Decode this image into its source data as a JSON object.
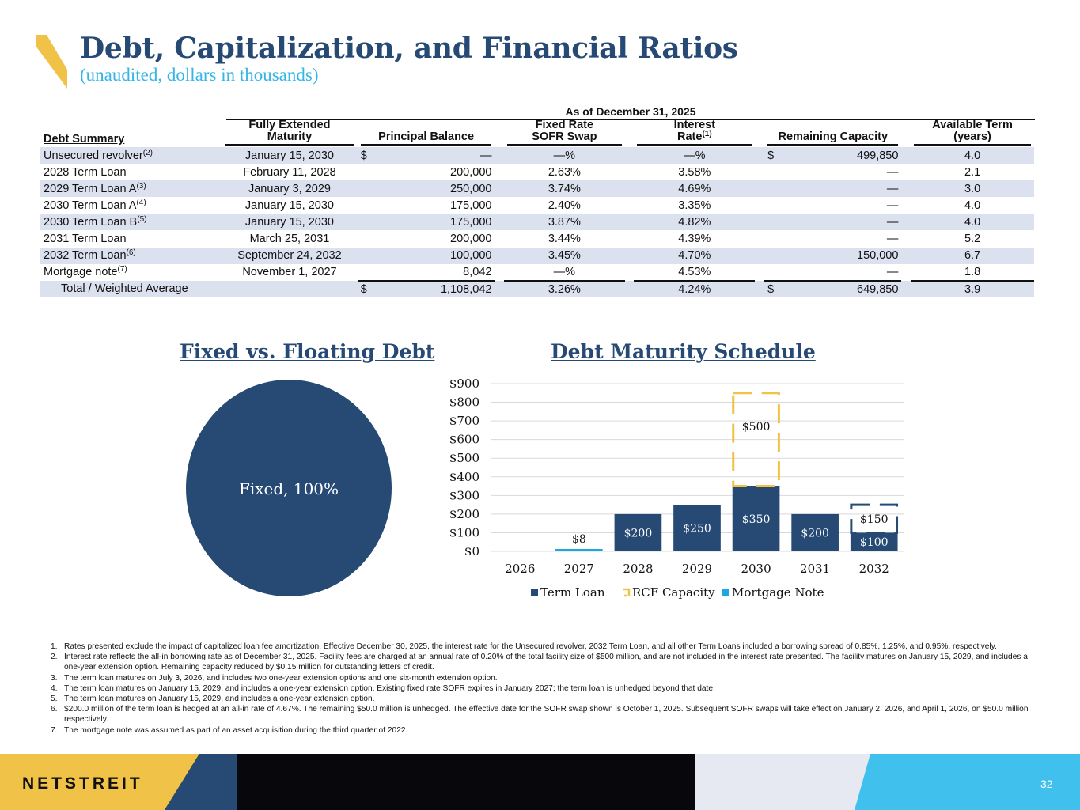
{
  "header": {
    "title": "Debt, Capitalization, and Financial Ratios",
    "subtitle": "(unaudited, dollars in thousands)",
    "colors": {
      "title": "#264a74",
      "subtitle": "#35b5e6",
      "accent": "#f0c247"
    }
  },
  "table": {
    "as_of": "As of December 31, 2025",
    "headers": {
      "debt_summary": "Debt Summary",
      "maturity_1": "Fully Extended",
      "maturity_2": "Maturity",
      "principal": "Principal Balance",
      "swap_1": "Fixed Rate",
      "swap_2": "SOFR Swap",
      "rate_1": "Interest",
      "rate_2": "Rate",
      "rate_sup": "(1)",
      "capacity": "Remaining Capacity",
      "term_1": "Available Term",
      "term_2": "(years)"
    },
    "rows": [
      {
        "name": "Unsecured revolver",
        "sup": "(2)",
        "maturity": "January 15, 2030",
        "dollar": "$",
        "principal": "—",
        "swap": "—%",
        "rate": "—%",
        "cap_dollar": "$",
        "capacity": "499,850",
        "term": "4.0"
      },
      {
        "name": "2028 Term Loan",
        "sup": "",
        "maturity": "February 11, 2028",
        "dollar": "",
        "principal": "200,000",
        "swap": "2.63%",
        "rate": "3.58%",
        "cap_dollar": "",
        "capacity": "—",
        "term": "2.1"
      },
      {
        "name": "2029 Term Loan A",
        "sup": "(3)",
        "maturity": "January 3, 2029",
        "dollar": "",
        "principal": "250,000",
        "swap": "3.74%",
        "rate": "4.69%",
        "cap_dollar": "",
        "capacity": "—",
        "term": "3.0"
      },
      {
        "name": "2030 Term Loan A",
        "sup": "(4)",
        "maturity": "January 15, 2030",
        "dollar": "",
        "principal": "175,000",
        "swap": "2.40%",
        "rate": "3.35%",
        "cap_dollar": "",
        "capacity": "—",
        "term": "4.0"
      },
      {
        "name": "2030 Term Loan B",
        "sup": "(5)",
        "maturity": "January 15, 2030",
        "dollar": "",
        "principal": "175,000",
        "swap": "3.87%",
        "rate": "4.82%",
        "cap_dollar": "",
        "capacity": "—",
        "term": "4.0"
      },
      {
        "name": "2031 Term Loan",
        "sup": "",
        "maturity": "March 25, 2031",
        "dollar": "",
        "principal": "200,000",
        "swap": "3.44%",
        "rate": "4.39%",
        "cap_dollar": "",
        "capacity": "—",
        "term": "5.2"
      },
      {
        "name": "2032 Term Loan",
        "sup": "(6)",
        "maturity": "September 24, 2032",
        "dollar": "",
        "principal": "100,000",
        "swap": "3.45%",
        "rate": "4.70%",
        "cap_dollar": "",
        "capacity": "150,000",
        "term": "6.7"
      },
      {
        "name": "Mortgage note",
        "sup": "(7)",
        "maturity": "November 1, 2027",
        "dollar": "",
        "principal": "8,042",
        "swap": "—%",
        "rate": "4.53%",
        "cap_dollar": "",
        "capacity": "—",
        "term": "1.8"
      }
    ],
    "total": {
      "name": "Total / Weighted Average",
      "dollar": "$",
      "principal": "1,108,042",
      "swap": "3.26%",
      "rate": "4.24%",
      "cap_dollar": "$",
      "capacity": "649,850",
      "term": "3.9"
    }
  },
  "charts": {
    "pie_title": "Fixed vs. Floating Debt",
    "bar_title": "Debt Maturity Schedule"
  },
  "chart_data": [
    {
      "type": "pie",
      "title": "Fixed vs. Floating Debt",
      "slices": [
        {
          "label": "Fixed",
          "value": 100,
          "display": "Fixed, 100%",
          "color": "#264a74"
        }
      ]
    },
    {
      "type": "bar",
      "title": "Debt Maturity Schedule",
      "categories": [
        "2026",
        "2027",
        "2028",
        "2029",
        "2030",
        "2031",
        "2032"
      ],
      "y_ticks": [
        "$0",
        "$100",
        "$200",
        "$300",
        "$400",
        "$500",
        "$600",
        "$700",
        "$800",
        "$900"
      ],
      "ylim": [
        0,
        900
      ],
      "grid": true,
      "legend_position": "bottom",
      "series": [
        {
          "name": "Term Loan",
          "color": "#264a74",
          "values": [
            0,
            0,
            200,
            250,
            350,
            200,
            100
          ],
          "labels": [
            "",
            "",
            "$200",
            "$250",
            "$350",
            "$200",
            "$100"
          ]
        },
        {
          "name": "RCF Capacity",
          "color": "#f0c247",
          "style": "dashed-outline",
          "values": [
            0,
            0,
            0,
            0,
            500,
            0,
            0
          ],
          "labels": [
            "",
            "",
            "",
            "",
            "$500",
            "",
            ""
          ]
        },
        {
          "name": "Mortgage Note",
          "color": "#1ba8e0",
          "values": [
            0,
            8,
            0,
            0,
            0,
            0,
            0
          ],
          "labels": [
            "",
            "$8",
            "",
            "",
            "",
            "",
            ""
          ]
        },
        {
          "name": "",
          "color": "#264a74",
          "style": "dashed-outline",
          "values": [
            0,
            0,
            0,
            0,
            0,
            0,
            150
          ],
          "labels": [
            "",
            "",
            "",
            "",
            "",
            "",
            "$150"
          ]
        }
      ]
    }
  ],
  "footnotes": [
    {
      "n": "1.",
      "text": "Rates presented exclude the impact of capitalized loan fee amortization. Effective December 30, 2025, the interest rate for the Unsecured revolver, 2032 Term Loan, and all other Term Loans included a borrowing spread of 0.85%, 1.25%, and 0.95%, respectively."
    },
    {
      "n": "2.",
      "text": "Interest rate reflects the all-in borrowing rate as of December 31, 2025. Facility fees are charged at an annual rate of 0.20% of the total facility size of $500 million, and are not included in the interest rate presented. The facility matures on January 15, 2029, and includes a one-year extension option. Remaining capacity reduced by $0.15 million for outstanding letters of credit."
    },
    {
      "n": "3.",
      "text": "The term loan matures on July 3, 2026, and includes two one-year extension options and one six-month extension option."
    },
    {
      "n": "4.",
      "text": "The term loan matures on January 15, 2029, and includes a one-year extension option. Existing fixed rate SOFR expires in January 2027; the term loan is unhedged beyond that date."
    },
    {
      "n": "5.",
      "text": "The term loan matures on January 15, 2029, and includes a one-year extension option."
    },
    {
      "n": "6.",
      "text": "$200.0 million of the term loan is hedged at an all-in rate of 4.67%. The remaining $50.0 million is unhedged.  The effective date for the SOFR swap shown is October 1, 2025. Subsequent SOFR swaps will take effect on January 2, 2026, and April 1, 2026, on $50.0 million respectively."
    },
    {
      "n": "7.",
      "text": "The mortgage note was assumed as part of an asset acquisition during the third quarter of 2022."
    }
  ],
  "footer": {
    "brand": "NETSTREIT",
    "page": "32",
    "colors": {
      "yellow": "#f0c247",
      "navy": "#264a74",
      "black": "#07070c",
      "gray": "#e6e9f2",
      "blue": "#40c0ec"
    }
  }
}
